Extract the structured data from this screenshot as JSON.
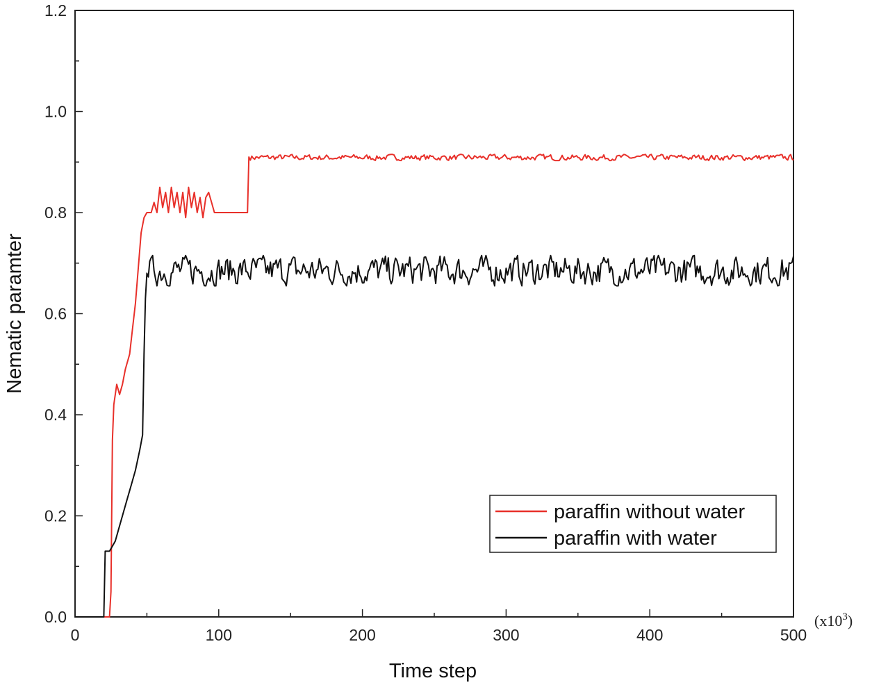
{
  "chart_data": {
    "type": "line",
    "title": "",
    "xlabel": "Time step",
    "ylabel": "Nematic paramter",
    "x_multiplier": {
      "base": "(x10",
      "exponent": "3",
      "close": ")"
    },
    "xlim": [
      0,
      500
    ],
    "ylim": [
      0,
      1.2
    ],
    "xticks": [
      "0",
      "100",
      "200",
      "300",
      "400",
      "500"
    ],
    "yticks": [
      "0.0",
      "0.2",
      "0.4",
      "0.6",
      "0.8",
      "1.0",
      "1.2"
    ],
    "grid": false,
    "legend_position": "bottom-right",
    "series": [
      {
        "name": "paraffin without water",
        "color": "#e8302a",
        "points": [
          [
            0,
            0
          ],
          [
            24,
            0
          ],
          [
            25,
            0.05
          ],
          [
            26,
            0.35
          ],
          [
            27,
            0.42
          ],
          [
            29,
            0.46
          ],
          [
            31,
            0.44
          ],
          [
            33,
            0.46
          ],
          [
            35,
            0.49
          ],
          [
            38,
            0.52
          ],
          [
            40,
            0.57
          ],
          [
            42,
            0.62
          ],
          [
            44,
            0.69
          ],
          [
            46,
            0.76
          ],
          [
            48,
            0.79
          ],
          [
            50,
            0.8
          ],
          [
            53,
            0.8
          ],
          [
            55,
            0.82
          ],
          [
            57,
            0.8
          ],
          [
            59,
            0.85
          ],
          [
            61,
            0.81
          ],
          [
            63,
            0.84
          ],
          [
            65,
            0.8
          ],
          [
            67,
            0.85
          ],
          [
            69,
            0.81
          ],
          [
            71,
            0.84
          ],
          [
            73,
            0.8
          ],
          [
            75,
            0.84
          ],
          [
            77,
            0.79
          ],
          [
            79,
            0.85
          ],
          [
            81,
            0.81
          ],
          [
            83,
            0.84
          ],
          [
            85,
            0.8
          ],
          [
            87,
            0.83
          ],
          [
            89,
            0.79
          ],
          [
            91,
            0.83
          ],
          [
            93,
            0.84
          ],
          [
            95,
            0.82
          ],
          [
            97,
            0.8
          ],
          [
            100,
            0.8
          ],
          [
            120,
            0.8
          ],
          [
            121,
            0.91
          ]
        ],
        "steady": {
          "from": 121,
          "to": 500,
          "mean": 0.909,
          "amplitude": 0.004
        }
      },
      {
        "name": "paraffin with water",
        "color": "#111111",
        "points": [
          [
            0,
            0
          ],
          [
            20,
            0
          ],
          [
            21,
            0.13
          ],
          [
            24,
            0.13
          ],
          [
            26,
            0.14
          ],
          [
            28,
            0.15
          ],
          [
            30,
            0.17
          ],
          [
            33,
            0.2
          ],
          [
            36,
            0.23
          ],
          [
            39,
            0.26
          ],
          [
            42,
            0.29
          ],
          [
            45,
            0.33
          ],
          [
            47,
            0.36
          ],
          [
            48,
            0.52
          ],
          [
            49,
            0.63
          ],
          [
            50,
            0.68
          ]
        ],
        "steady": {
          "from": 50,
          "to": 500,
          "mean": 0.685,
          "amplitude": 0.02
        }
      }
    ]
  }
}
